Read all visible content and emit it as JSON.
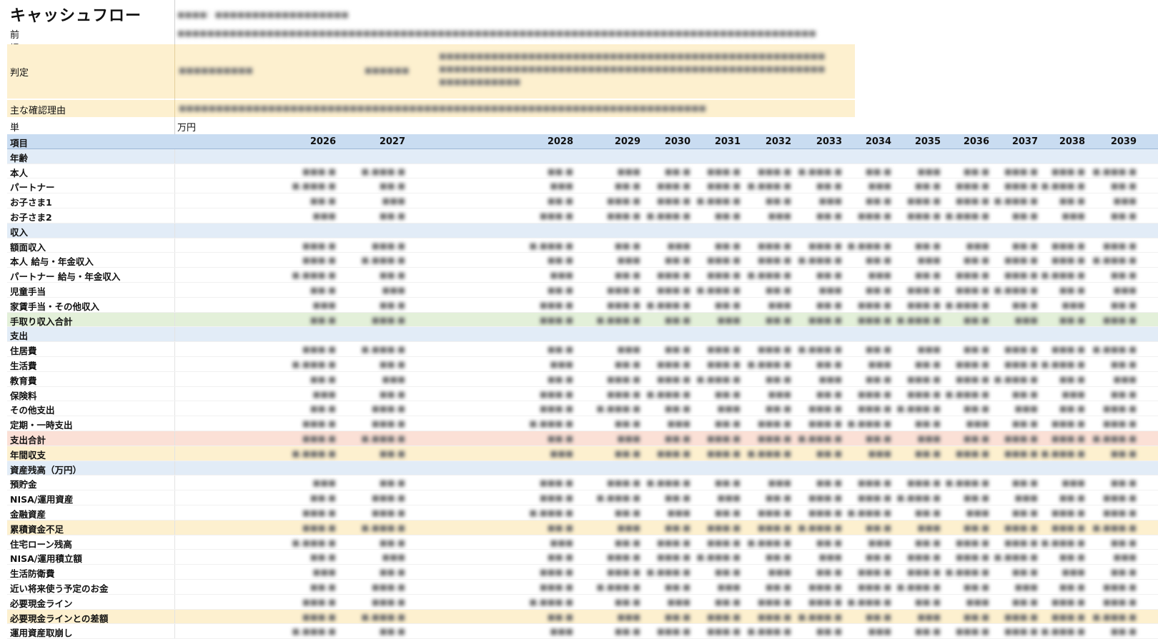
{
  "title": "キャッシュフロー",
  "meta": {
    "premise_label": "前提",
    "judgment_label": "判定",
    "reasons_label": "主な確認理由",
    "unit_label": "単位",
    "unit_value": "万円"
  },
  "table": {
    "item_header": "項目",
    "years": [
      "2026",
      "2027",
      "2028",
      "2029",
      "2030",
      "2031",
      "2032",
      "2033",
      "2034",
      "2035",
      "2036",
      "2037",
      "2038",
      "2039"
    ],
    "rows": [
      {
        "label": "年齢",
        "style": "section"
      },
      {
        "label": "本人",
        "style": "normal"
      },
      {
        "label": "パートナー",
        "style": "normal"
      },
      {
        "label": "お子さま1",
        "style": "normal"
      },
      {
        "label": "お子さま2",
        "style": "normal"
      },
      {
        "label": "収入",
        "style": "section"
      },
      {
        "label": "額面収入",
        "style": "normal"
      },
      {
        "label": "本人 給与・年金収入",
        "style": "normal"
      },
      {
        "label": "パートナー 給与・年金収入",
        "style": "normal"
      },
      {
        "label": "児童手当",
        "style": "normal"
      },
      {
        "label": "家賃手当・その他収入",
        "style": "normal"
      },
      {
        "label": "手取り収入合計",
        "style": "green"
      },
      {
        "label": "支出",
        "style": "section"
      },
      {
        "label": "住居費",
        "style": "normal"
      },
      {
        "label": "生活費",
        "style": "normal"
      },
      {
        "label": "教育費",
        "style": "normal"
      },
      {
        "label": "保険料",
        "style": "normal"
      },
      {
        "label": "その他支出",
        "style": "normal"
      },
      {
        "label": "定期・一時支出",
        "style": "normal"
      },
      {
        "label": "支出合計",
        "style": "salmon"
      },
      {
        "label": "年間収支",
        "style": "amber"
      },
      {
        "label": "資産残高（万円）",
        "style": "section"
      },
      {
        "label": "預貯金",
        "style": "normal"
      },
      {
        "label": "NISA/運用資産",
        "style": "normal"
      },
      {
        "label": "金融資産",
        "style": "normal"
      },
      {
        "label": "累積資金不足",
        "style": "amber"
      },
      {
        "label": "住宅ローン残高",
        "style": "normal"
      },
      {
        "label": "NISA/運用積立額",
        "style": "normal"
      },
      {
        "label": "生活防衛費",
        "style": "normal"
      },
      {
        "label": "近い将来使う予定のお金",
        "style": "normal"
      },
      {
        "label": "必要現金ライン",
        "style": "normal"
      },
      {
        "label": "必要現金ラインとの差額",
        "style": "amber"
      },
      {
        "label": "運用資産取崩し",
        "style": "normal"
      }
    ]
  },
  "colors": {
    "header_blue": "#c9dcf1",
    "section_blue": "#e2ecf7",
    "green": "#e3f0d9",
    "salmon": "#fbe0d6",
    "amber": "#fdf0cf"
  }
}
